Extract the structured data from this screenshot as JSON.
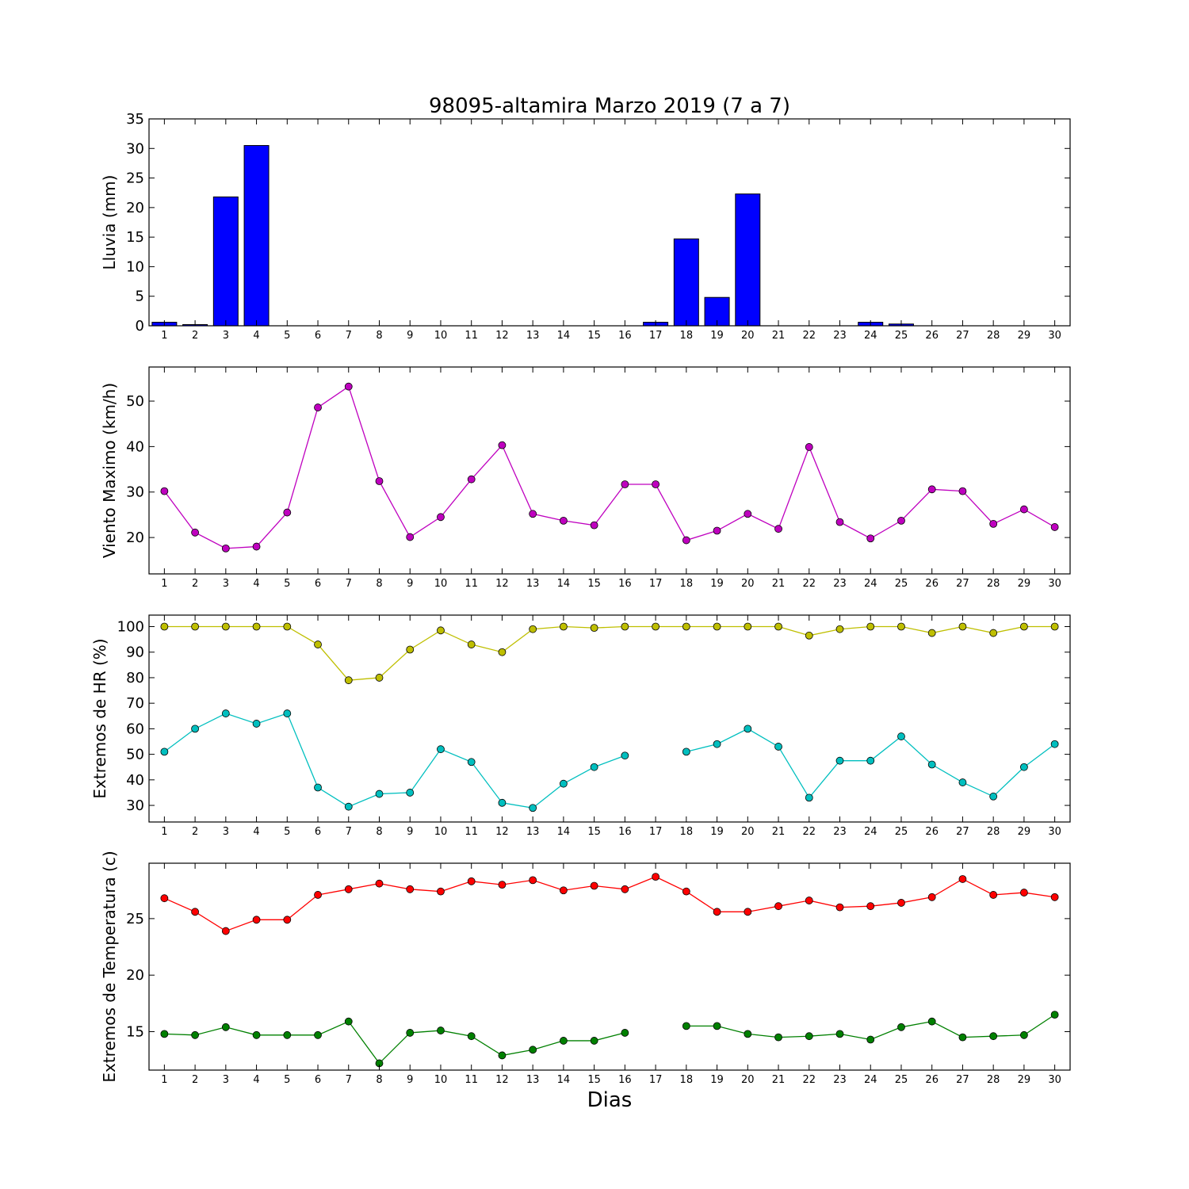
{
  "chart_data": {
    "title": "98095-altamira Marzo 2019  (7 a 7)",
    "xlabel": "Dias",
    "x": [
      1,
      2,
      3,
      4,
      5,
      6,
      7,
      8,
      9,
      10,
      11,
      12,
      13,
      14,
      15,
      16,
      17,
      18,
      19,
      20,
      21,
      22,
      23,
      24,
      25,
      26,
      27,
      28,
      29,
      30
    ],
    "x_tick_labels": [
      "1",
      "2",
      "3",
      "4",
      "5",
      "6",
      "7",
      "8",
      "9",
      "10",
      "11",
      "12",
      "13",
      "14",
      "15",
      "16",
      "17",
      "18",
      "19",
      "20",
      "21",
      "22",
      "23",
      "24",
      "25",
      "26",
      "27",
      "28",
      "29",
      "30"
    ],
    "panels": [
      {
        "type": "bar",
        "ylabel": "Lluvia (mm)",
        "ylim": [
          0,
          35
        ],
        "y_ticks": [
          0,
          5,
          10,
          15,
          20,
          25,
          30,
          35
        ],
        "series": [
          {
            "color": "#0000ff",
            "values": [
              0.6,
              0.2,
              21.8,
              30.5,
              0,
              0,
              0,
              0,
              0,
              0,
              0,
              0,
              0,
              0,
              0,
              0,
              0.6,
              14.7,
              4.8,
              22.3,
              0,
              0,
              0,
              0.6,
              0.3,
              0,
              0,
              0,
              0,
              0
            ]
          }
        ]
      },
      {
        "type": "line",
        "ylabel": "Viento Maximo (km/h)",
        "ylim": [
          12,
          57.5
        ],
        "y_ticks": [
          20,
          30,
          40,
          50
        ],
        "series": [
          {
            "color": "#bf00bf",
            "values": [
              30.2,
              21.1,
              17.6,
              18.0,
              25.5,
              48.6,
              53.2,
              32.4,
              20.1,
              24.5,
              32.8,
              40.3,
              25.2,
              23.7,
              22.7,
              31.7,
              31.7,
              19.4,
              21.5,
              25.2,
              21.9,
              39.9,
              23.4,
              19.8,
              23.7,
              30.6,
              30.2,
              23.0,
              26.2,
              22.3
            ]
          }
        ]
      },
      {
        "type": "line",
        "ylabel": "Extremos de HR (%)",
        "ylim": [
          23.5,
          104.5
        ],
        "y_ticks": [
          30,
          40,
          50,
          60,
          70,
          80,
          90,
          100
        ],
        "series": [
          {
            "color": "#bfbf00",
            "values": [
              100,
              100,
              100,
              100,
              100,
              93,
              79,
              80,
              91,
              98.5,
              93,
              90,
              99,
              100,
              99.5,
              100,
              100,
              100,
              100,
              100,
              100,
              96.5,
              99,
              100,
              100,
              97.5,
              100,
              97.5,
              100,
              100
            ]
          },
          {
            "color": "#00bfbf",
            "values": [
              51,
              60,
              66,
              62,
              66,
              37,
              29.5,
              34.5,
              35,
              52,
              47,
              31,
              29,
              38.5,
              45,
              49.5,
              null,
              51,
              54,
              60,
              53,
              33,
              47.5,
              47.5,
              57,
              46,
              39,
              33.5,
              45,
              54
            ]
          }
        ]
      },
      {
        "type": "line",
        "ylabel": "Extremos de Temperatura (c)",
        "ylim": [
          11.6,
          29.9
        ],
        "y_ticks": [
          15,
          20,
          25
        ],
        "series": [
          {
            "color": "#ff0000",
            "values": [
              26.8,
              25.6,
              23.9,
              24.9,
              24.9,
              27.1,
              27.6,
              28.1,
              27.6,
              27.4,
              28.3,
              28.0,
              28.4,
              27.5,
              27.9,
              27.6,
              28.7,
              27.4,
              25.6,
              25.6,
              26.1,
              26.6,
              26.0,
              26.1,
              26.4,
              26.9,
              28.5,
              27.1,
              27.3,
              26.9
            ]
          },
          {
            "color": "#008000",
            "values": [
              14.8,
              14.7,
              15.4,
              14.7,
              14.7,
              14.7,
              15.9,
              12.2,
              14.9,
              15.1,
              14.6,
              12.9,
              13.4,
              14.2,
              14.2,
              14.9,
              null,
              15.5,
              15.5,
              14.8,
              14.5,
              14.6,
              14.8,
              14.3,
              15.4,
              15.9,
              14.5,
              14.6,
              14.7,
              16.5
            ]
          }
        ]
      }
    ]
  }
}
